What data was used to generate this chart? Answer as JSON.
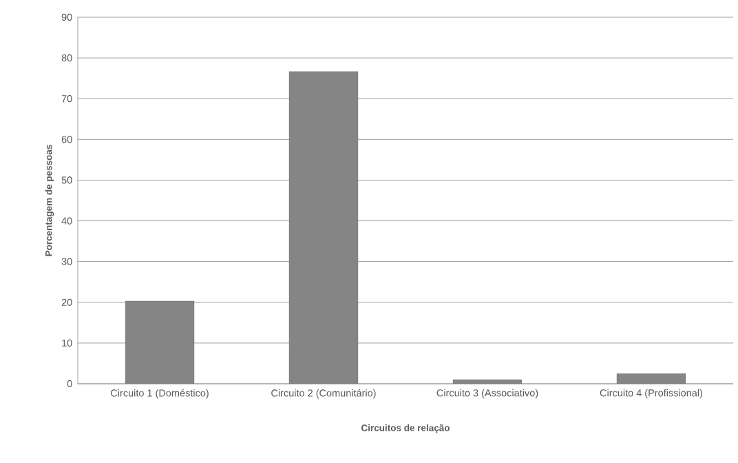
{
  "chart_data": {
    "type": "bar",
    "xlabel": "Circuitos de relação",
    "ylabel": "Porcentagem de pessoas",
    "categories": [
      "Circuito 1 (Doméstico)",
      "Circuito 2 (Comunitário)",
      "Circuito 3 (Associativo)",
      "Circuito 4 (Profissional)"
    ],
    "values": [
      20.3,
      76.7,
      1,
      2.5
    ],
    "color": "#858585",
    "ylim": [
      0,
      90
    ],
    "yticks": [
      0,
      10,
      20,
      30,
      40,
      50,
      60,
      70,
      80,
      90
    ],
    "grid": "y"
  }
}
